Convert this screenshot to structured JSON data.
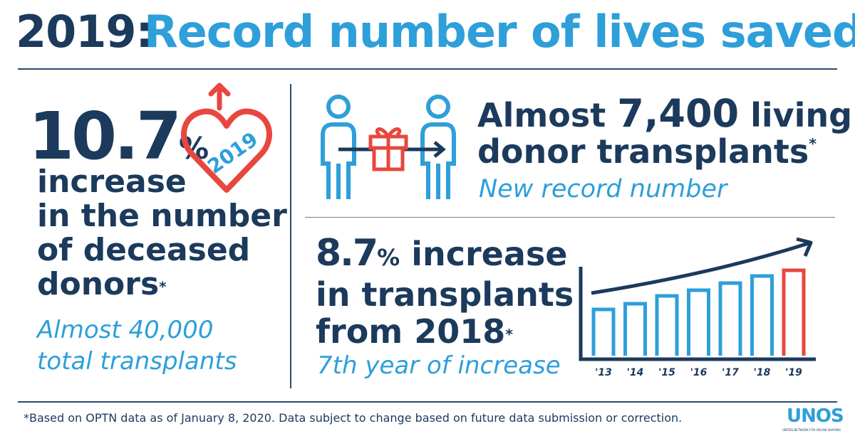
{
  "header": {
    "year": "2019:",
    "title": "Record number of lives saved"
  },
  "left": {
    "stat": "10.7",
    "unit": "%",
    "lines": [
      "increase",
      "in the number",
      "of deceased",
      "donors"
    ],
    "asterisk": "*",
    "sub": [
      "Almost 40,000",
      "total transplants"
    ],
    "icon_text": "2019"
  },
  "living": {
    "prefix": "Almost",
    "stat": "7,400",
    "suffix": "living",
    "line2": "donor transplants",
    "asterisk": "*",
    "sub": "New record number"
  },
  "growth": {
    "stat": "8.7",
    "unit": "%",
    "line1": "increase",
    "line2": "in transplants",
    "line3": "from 2018",
    "asterisk": "*",
    "sub": "7th year of increase"
  },
  "chart": {
    "categories": [
      "'13",
      "'14",
      "'15",
      "'16",
      "'17",
      "'18",
      "'19"
    ]
  },
  "footer": {
    "note": "*Based on OPTN data as of January 8, 2020. Data subject to change based on future data submission or correction.",
    "logo": "UNOS",
    "logo_sub": "UNITED NETWORK FOR ORGAN SHARING"
  }
}
